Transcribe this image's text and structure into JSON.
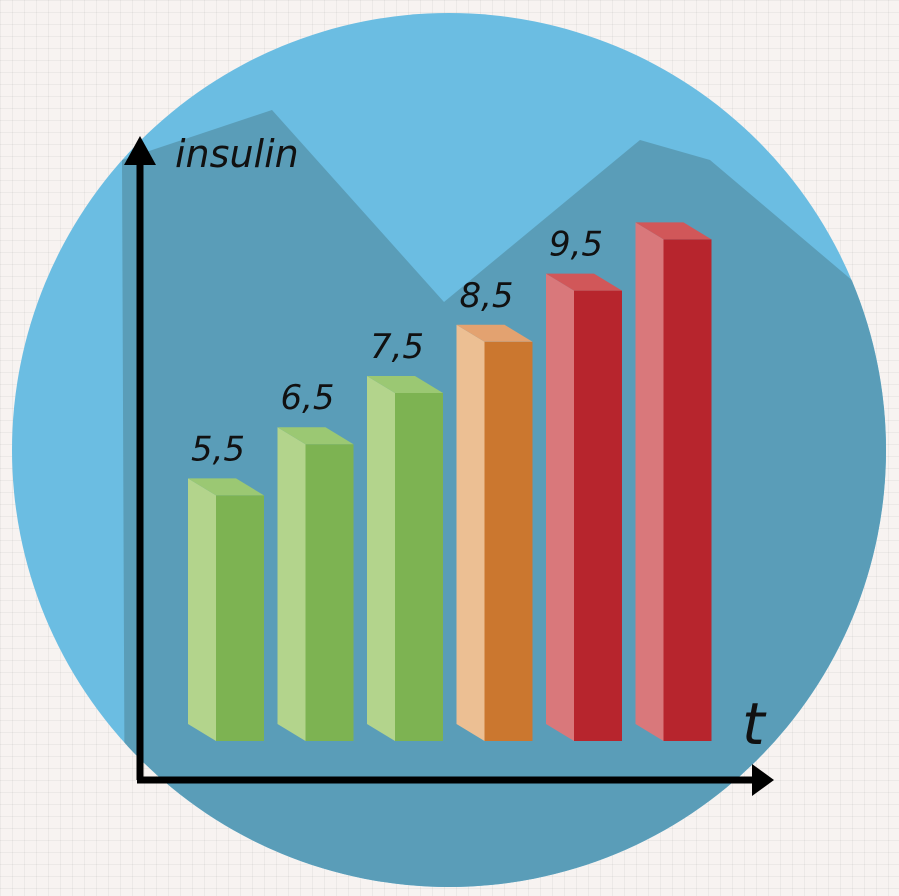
{
  "colors": {
    "background": "#f7f3f1",
    "circle": "#6bbde2",
    "shadow": "#5a9db8",
    "axis": "#000000"
  },
  "chart_data": {
    "type": "bar",
    "title": "",
    "ylabel": "insulin",
    "xlabel": "t",
    "categories": [
      "",
      "",
      "",
      "",
      "",
      ""
    ],
    "values": [
      5.5,
      6.5,
      7.5,
      8.5,
      9.5,
      10.5
    ],
    "labels": [
      "5,5",
      "6,5",
      "7,5",
      "8,5",
      "9,5",
      ""
    ],
    "bar_colors": [
      {
        "front": "#7db352",
        "side": "#b3d48c",
        "top": "#9bc873"
      },
      {
        "front": "#7db352",
        "side": "#b3d48c",
        "top": "#9bc873"
      },
      {
        "front": "#7db352",
        "side": "#b3d48c",
        "top": "#9bc873"
      },
      {
        "front": "#cb772f",
        "side": "#ecbf93",
        "top": "#e3a270"
      },
      {
        "front": "#b7252d",
        "side": "#d9787b",
        "top": "#d15759"
      },
      {
        "front": "#b7252d",
        "side": "#d9787b",
        "top": "#d15759"
      }
    ],
    "ylim": [
      0,
      11.5
    ],
    "grid": false,
    "legend": "none"
  }
}
